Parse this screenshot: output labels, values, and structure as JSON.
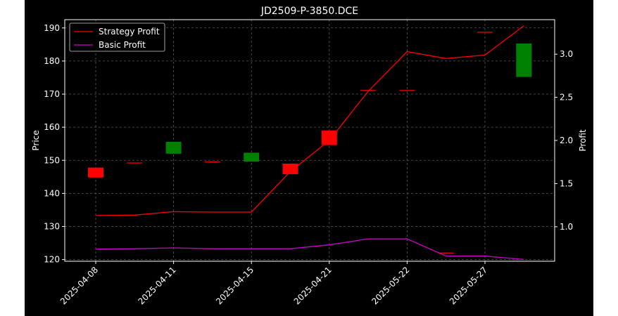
{
  "chart_data": {
    "type": "candlestick+line",
    "title": "JD2509-P-3850.DCE",
    "ylabel_left": "Price",
    "ylabel_right": "Profit",
    "xlabel": "",
    "y_left_ticks": [
      120,
      130,
      140,
      150,
      160,
      170,
      180,
      190
    ],
    "y_left_range": [
      119.5,
      192.5
    ],
    "y_right_ticks": [
      "1.0",
      "1.5",
      "2.0",
      "2.5",
      "3.0"
    ],
    "y_right_range": [
      0.6,
      3.4
    ],
    "x_tick_labels": [
      "2025-04-08",
      "2025-04-11",
      "2025-04-15",
      "2025-04-21",
      "2025-05-22",
      "2025-05-27"
    ],
    "x_tick_positions": [
      0,
      2,
      4,
      6,
      8,
      10
    ],
    "grid": true,
    "legend_position": "top-left",
    "series": [
      {
        "name": "Strategy Profit",
        "color": "#ff0000",
        "axis": "right",
        "values": [
          1.13,
          1.135,
          1.175,
          1.17,
          1.17,
          1.64,
          2.0,
          2.57,
          3.03,
          2.95,
          2.99,
          3.33
        ]
      },
      {
        "name": "Basic Profit",
        "color": "#cc00cc",
        "axis": "right",
        "values": [
          0.74,
          0.745,
          0.755,
          0.745,
          0.745,
          0.745,
          0.79,
          0.86,
          0.86,
          0.66,
          0.66,
          0.62
        ]
      }
    ],
    "candles": [
      {
        "open": 144.8,
        "close": 147.8,
        "direction": "down"
      },
      {
        "open": 149.2,
        "close": 149.2,
        "direction": "down"
      },
      {
        "open": 152.0,
        "close": 155.6,
        "direction": "up"
      },
      {
        "open": 149.5,
        "close": 149.5,
        "direction": "down"
      },
      {
        "open": 149.6,
        "close": 152.3,
        "direction": "up"
      },
      {
        "open": 145.8,
        "close": 149.0,
        "direction": "down"
      },
      {
        "open": 154.6,
        "close": 159.0,
        "direction": "down"
      },
      {
        "open": 171.1,
        "close": 171.1,
        "direction": "down"
      },
      {
        "open": 171.1,
        "close": 171.1,
        "direction": "down"
      },
      {
        "open": 122.0,
        "close": 122.0,
        "direction": "down"
      },
      {
        "open": 188.7,
        "close": 188.7,
        "direction": "down"
      },
      {
        "open": 175.2,
        "close": 185.3,
        "direction": "up"
      }
    ],
    "colors": {
      "up": "#008000",
      "down": "#ff0000",
      "background": "#000000",
      "grid": "#5a5a5a",
      "text": "#ffffff"
    }
  }
}
